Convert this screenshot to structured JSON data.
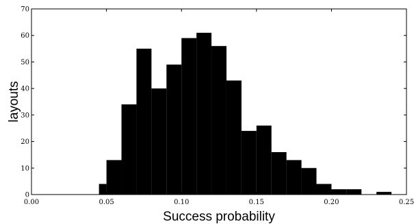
{
  "chart_data": {
    "type": "bar",
    "xlabel": "Success probability",
    "ylabel": "layouts",
    "xlim": [
      0.0,
      0.25
    ],
    "ylim": [
      0,
      70
    ],
    "bar_color": "#000000",
    "bin_width": 0.005,
    "bins": [
      {
        "x0": 0.045,
        "value": 4
      },
      {
        "x0": 0.05,
        "value": 13
      },
      {
        "x0": 0.06,
        "value": 34
      },
      {
        "x0": 0.07,
        "value": 55
      },
      {
        "x0": 0.08,
        "value": 40
      },
      {
        "x0": 0.09,
        "value": 49
      },
      {
        "x0": 0.1,
        "value": 59
      },
      {
        "x0": 0.11,
        "value": 61
      },
      {
        "x0": 0.12,
        "value": 56
      },
      {
        "x0": 0.13,
        "value": 43
      },
      {
        "x0": 0.14,
        "value": 24
      },
      {
        "x0": 0.15,
        "value": 26
      },
      {
        "x0": 0.16,
        "value": 16
      },
      {
        "x0": 0.17,
        "value": 13
      },
      {
        "x0": 0.18,
        "value": 10
      },
      {
        "x0": 0.19,
        "value": 4
      },
      {
        "x0": 0.2,
        "value": 2
      },
      {
        "x0": 0.21,
        "value": 2
      },
      {
        "x0": 0.22,
        "value": 0
      },
      {
        "x0": 0.23,
        "value": 1
      }
    ],
    "x_ticks": [
      "0.00",
      "0.05",
      "0.10",
      "0.15",
      "0.20",
      "0.25"
    ],
    "x_tick_values": [
      0.0,
      0.05,
      0.1,
      0.15,
      0.2,
      0.25
    ],
    "y_ticks": [
      "0",
      "10",
      "20",
      "30",
      "40",
      "50",
      "60",
      "70"
    ],
    "y_tick_values": [
      0,
      10,
      20,
      30,
      40,
      50,
      60,
      70
    ],
    "grid": false,
    "legend": "none"
  }
}
